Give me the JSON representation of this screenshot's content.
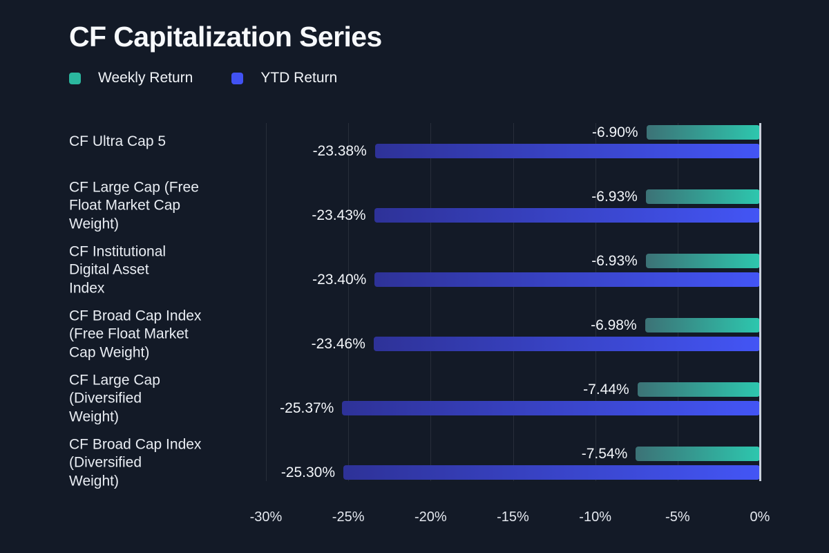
{
  "header": {
    "title": "CF Capitalization Series"
  },
  "legend": {
    "items": [
      {
        "label": "Weekly Return",
        "color": "#2bb89f"
      },
      {
        "label": "YTD Return",
        "color": "#4152f3"
      }
    ]
  },
  "colors": {
    "background": "#131a27",
    "gridline": "rgba(255,255,255,0.09)",
    "zero_axis": "#c9d0db",
    "text": "#e9edf3"
  },
  "chart_data": {
    "type": "bar",
    "orientation": "horizontal",
    "title": "CF Capitalization Series",
    "xlabel": "",
    "ylabel": "",
    "xlim": [
      -30,
      0
    ],
    "grid": true,
    "legend_position": "top-left",
    "x_ticks": [
      {
        "value": -30,
        "label": "-30%"
      },
      {
        "value": -25,
        "label": "-25%"
      },
      {
        "value": -20,
        "label": "-20%"
      },
      {
        "value": -15,
        "label": "-15%"
      },
      {
        "value": -10,
        "label": "-10%"
      },
      {
        "value": -5,
        "label": "-5%"
      },
      {
        "value": 0,
        "label": "0%"
      }
    ],
    "categories": [
      "CF Ultra Cap 5",
      "CF Large Cap (Free\nFloat Market Cap\nWeight)",
      "CF Institutional\nDigital Asset\nIndex",
      "CF Broad Cap Index\n(Free Float Market\nCap Weight)",
      "CF Large Cap\n(Diversified\nWeight)",
      "CF Broad Cap Index\n(Diversified\nWeight)"
    ],
    "series": [
      {
        "name": "Weekly Return",
        "values": [
          -6.9,
          -6.93,
          -6.93,
          -6.98,
          -7.44,
          -7.54
        ],
        "labels": [
          "-6.90%",
          "-6.93%",
          "-6.93%",
          "-6.98%",
          "-7.44%",
          "-7.54%"
        ],
        "gradient_start": "#3c7276",
        "gradient_end": "#2dc7ae"
      },
      {
        "name": "YTD Return",
        "values": [
          -23.38,
          -23.43,
          -23.4,
          -23.46,
          -25.37,
          -25.3
        ],
        "labels": [
          "-23.38%",
          "-23.43%",
          "-23.40%",
          "-23.46%",
          "-25.37%",
          "-25.30%"
        ],
        "gradient_start": "#2e3298",
        "gradient_end": "#4355f5"
      }
    ]
  }
}
